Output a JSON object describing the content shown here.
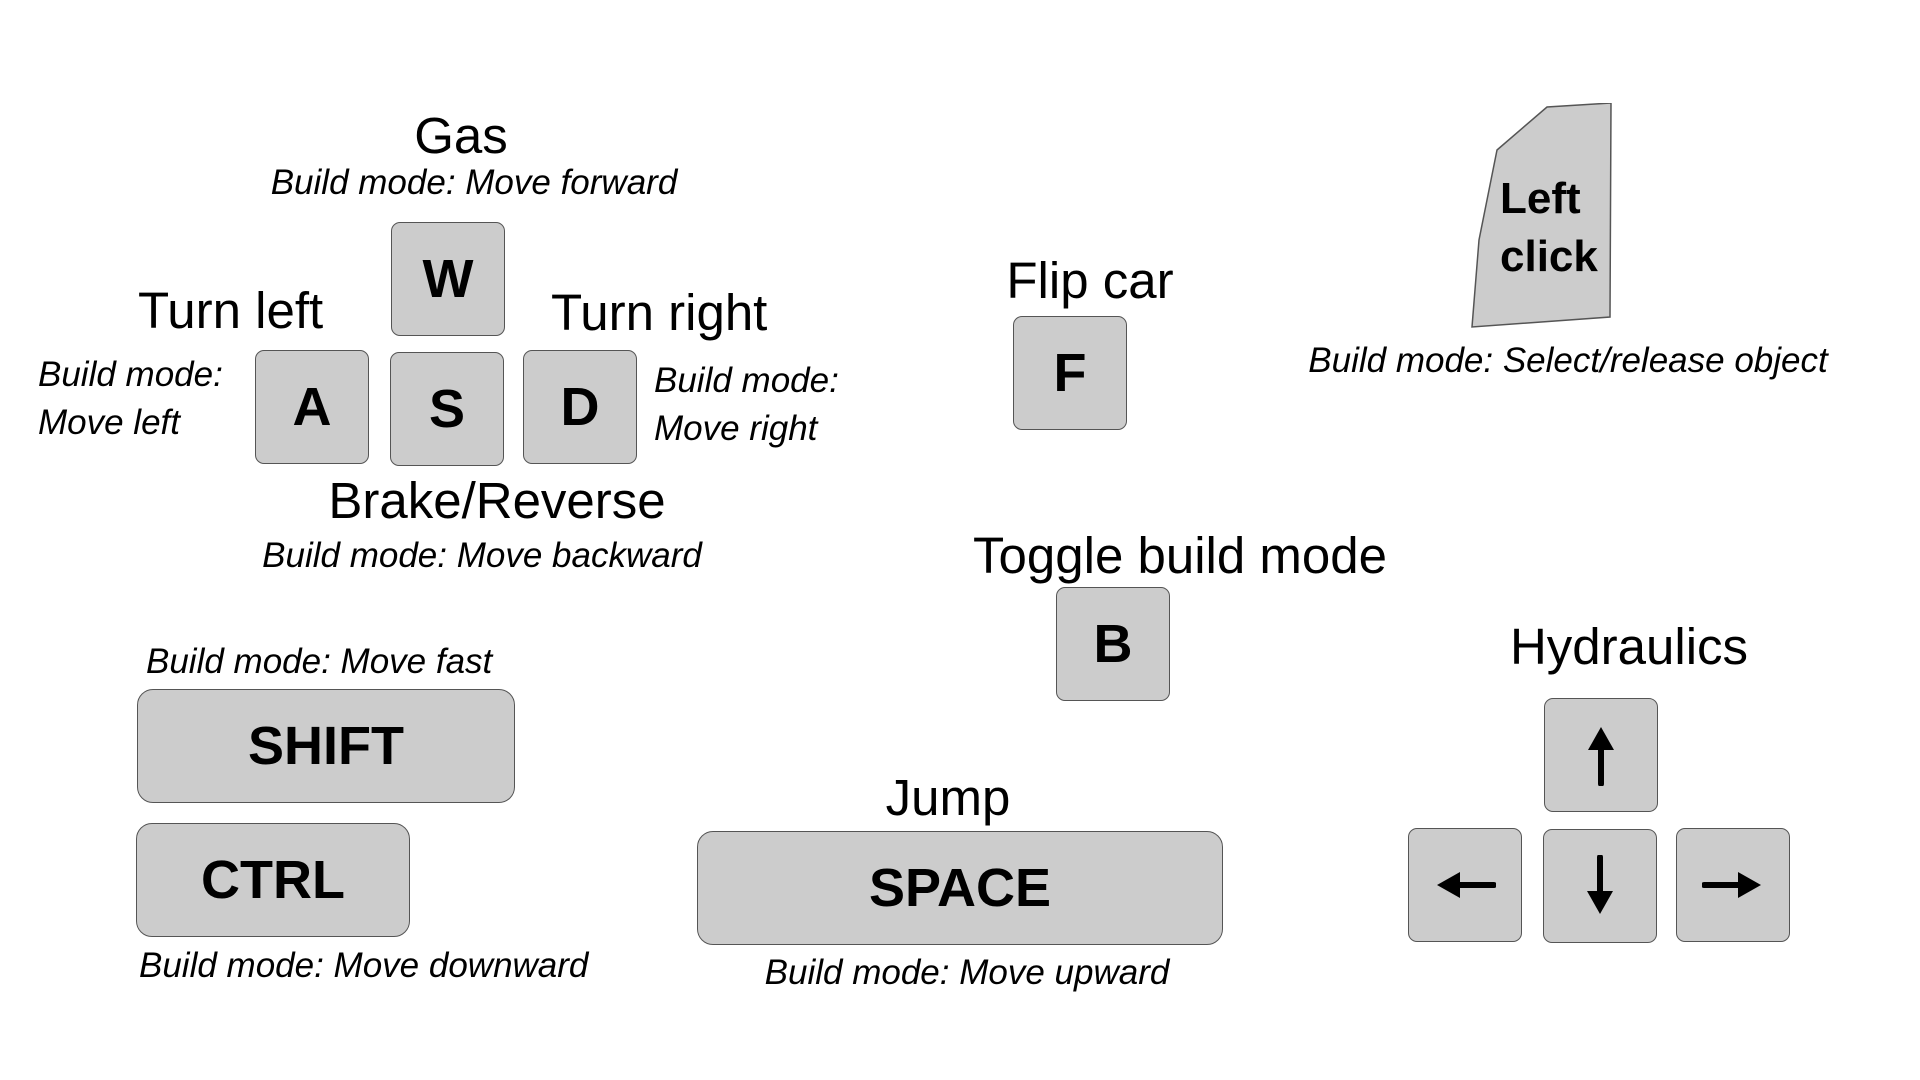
{
  "movement": {
    "gas": {
      "label": "Gas",
      "build": "Build mode: Move forward",
      "key": "W"
    },
    "turn_left": {
      "label": "Turn left",
      "build_line1": "Build mode:",
      "build_line2": "Move left",
      "key": "A"
    },
    "brake": {
      "label": "Brake/Reverse",
      "build": "Build mode: Move backward",
      "key": "S"
    },
    "turn_right": {
      "label": "Turn right",
      "build_line1": "Build mode:",
      "build_line2": "Move right",
      "key": "D"
    }
  },
  "flip": {
    "label": "Flip car",
    "key": "F"
  },
  "mouse": {
    "line1": "Left",
    "line2": "click",
    "build": "Build mode: Select/release object"
  },
  "build_toggle": {
    "label": "Toggle build mode",
    "key": "B"
  },
  "shift": {
    "build": "Build mode: Move fast",
    "key": "SHIFT"
  },
  "ctrl": {
    "key": "CTRL",
    "build": "Build mode: Move downward"
  },
  "jump": {
    "label": "Jump",
    "key": "SPACE",
    "build": "Build mode: Move upward"
  },
  "hydraulics": {
    "label": "Hydraulics",
    "keys": [
      "up-arrow-icon",
      "left-arrow-icon",
      "down-arrow-icon",
      "right-arrow-icon"
    ]
  },
  "colors": {
    "key_fill": "#cccccc",
    "key_border": "#555555",
    "text": "#000000",
    "background": "#ffffff"
  }
}
